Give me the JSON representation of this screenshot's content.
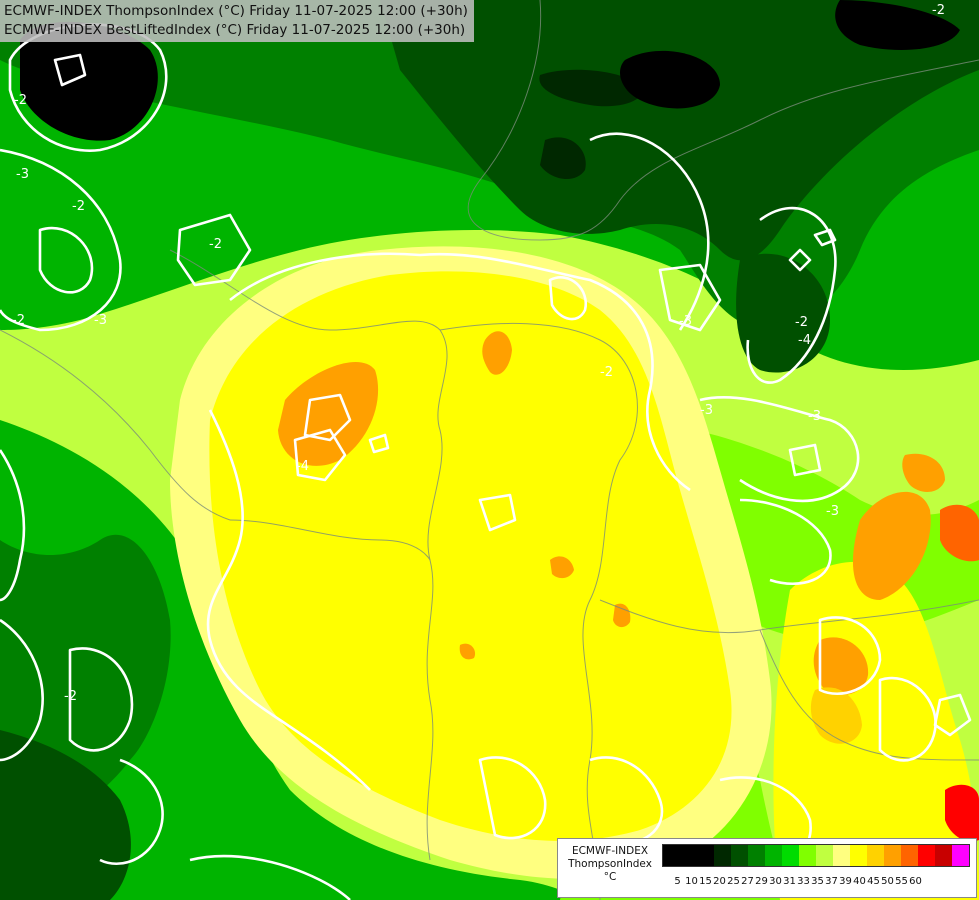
{
  "header": {
    "line1": "ECMWF-INDEX ThompsonIndex (°C) Friday 11-07-2025 12:00 (+30h)",
    "line2": "ECMWF-INDEX BestLiftedIndex (°C) Friday 11-07-2025 12:00 (+30h)"
  },
  "legend": {
    "title_line1": "ECMWF-INDEX",
    "title_line2": "ThompsonIndex",
    "unit": "°C",
    "ticks": [
      "5",
      "10",
      "15",
      "20",
      "25",
      "27",
      "29",
      "30",
      "31",
      "33",
      "35",
      "37",
      "39",
      "40",
      "45",
      "50",
      "55",
      "60"
    ],
    "colors": [
      "#000000",
      "#000000",
      "#000000",
      "#002800",
      "#005000",
      "#008000",
      "#00b400",
      "#00dc00",
      "#80ff00",
      "#c0ff40",
      "#ffff80",
      "#ffff00",
      "#ffd200",
      "#ffa000",
      "#ff6400",
      "#ff0000",
      "#c80000",
      "#ff00ff",
      "#c800ff",
      "#8000ff",
      "#4000ff",
      "#0000ff"
    ]
  },
  "contour_labels": [
    {
      "text": "-3"
    },
    {
      "text": "-2"
    },
    {
      "text": "-2"
    },
    {
      "text": "-3"
    },
    {
      "text": "-2"
    },
    {
      "text": "-4"
    },
    {
      "text": "-2"
    },
    {
      "text": "-3"
    },
    {
      "text": "-2"
    },
    {
      "text": "-3"
    },
    {
      "text": "-3"
    },
    {
      "text": "-2"
    },
    {
      "text": "-4"
    },
    {
      "text": "-2"
    },
    {
      "text": "-3"
    },
    {
      "text": "-2"
    }
  ]
}
